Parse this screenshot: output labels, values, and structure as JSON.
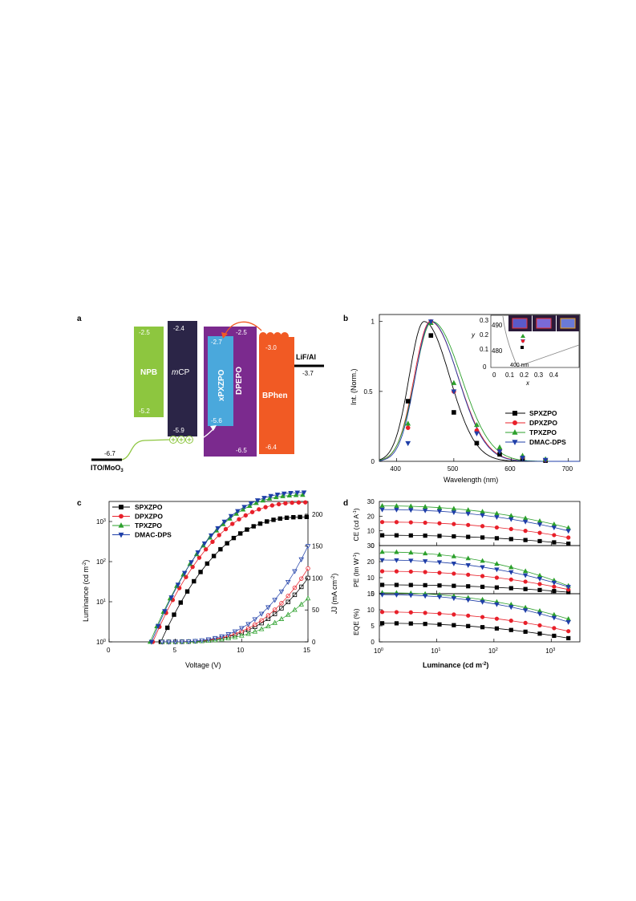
{
  "panel_labels": {
    "a": "a",
    "b": "b",
    "c": "c",
    "d": "d"
  },
  "energy_diagram": {
    "layers": [
      {
        "name": "NPB",
        "lumo": "-2.5",
        "homo": "-5.2",
        "color": "#8dc63f"
      },
      {
        "name": "mCP",
        "name_prefix": "m",
        "name_rest": "CP",
        "lumo": "-2.4",
        "homo": "-5.9",
        "color": "#2b2547"
      },
      {
        "name": "xPXZPO",
        "lumo": "-2.7",
        "homo": "-5.6",
        "color": "#4aa8dc"
      },
      {
        "name": "DPEPO",
        "lumo": "-2.5",
        "homo": "-6.5",
        "color": "#7b2a8e"
      },
      {
        "name": "BPhen",
        "lumo": "-3.0",
        "homo": "-6.4",
        "color": "#f15a24"
      }
    ],
    "anode": {
      "label": "ITO/MoO",
      "sub": "3",
      "level": "-6.7"
    },
    "cathode": {
      "label": "LiF/Al",
      "level": "-3.7"
    }
  },
  "chart_data": [
    {
      "id": "b",
      "type": "line",
      "xlabel": "Wavelength (nm)",
      "ylabel": "Int. (Norm.)",
      "xlim": [
        370,
        720
      ],
      "ylim": [
        0,
        1.05
      ],
      "xticks": [
        "400",
        "500",
        "600",
        "700"
      ],
      "yticks": [
        "0",
        "0.5",
        "1"
      ],
      "legend_position": "right",
      "series": [
        {
          "name": "SPXZPO",
          "color": "#000000",
          "marker": "square",
          "peak": 448,
          "fwhm": 72,
          "points": [
            [
              420,
              0.43
            ],
            [
              460,
              0.9
            ],
            [
              500,
              0.35
            ],
            [
              540,
              0.13
            ],
            [
              580,
              0.05
            ],
            [
              620,
              0.02
            ],
            [
              660,
              0.005
            ]
          ]
        },
        {
          "name": "DPXZPO",
          "color": "#e8202a",
          "marker": "circle",
          "peak": 459,
          "fwhm": 78,
          "points": [
            [
              420,
              0.24
            ],
            [
              460,
              1.0
            ],
            [
              500,
              0.5
            ],
            [
              540,
              0.22
            ],
            [
              580,
              0.08
            ],
            [
              620,
              0.03
            ],
            [
              660,
              0.01
            ]
          ]
        },
        {
          "name": "TPXZPO",
          "color": "#2ca02c",
          "marker": "triangle",
          "peak": 462,
          "fwhm": 82,
          "points": [
            [
              420,
              0.27
            ],
            [
              460,
              0.99
            ],
            [
              500,
              0.56
            ],
            [
              540,
              0.26
            ],
            [
              580,
              0.1
            ],
            [
              620,
              0.04
            ],
            [
              660,
              0.015
            ]
          ]
        },
        {
          "name": "DMAC-DPS",
          "color": "#1f3fa8",
          "marker": "triangle-down",
          "peak": 460,
          "fwhm": 76,
          "points": [
            [
              420,
              0.13
            ],
            [
              460,
              1.0
            ],
            [
              500,
              0.5
            ],
            [
              540,
              0.2
            ],
            [
              580,
              0.07
            ],
            [
              620,
              0.025
            ],
            [
              660,
              0.01
            ]
          ]
        }
      ],
      "inset": {
        "xlabel": "x",
        "ylabel": "y",
        "xticks": [
          "0",
          "0.1",
          "0.2",
          "0.3",
          "0.4"
        ],
        "yticks": [
          "0",
          "0.1",
          "0.2",
          "0.3"
        ],
        "annotations": [
          "490",
          "480",
          "400 nm"
        ]
      }
    },
    {
      "id": "c",
      "type": "scatter",
      "xlabel": "Voltage (V)",
      "ylabel_left": "Luminance (cd m",
      "ylabel_left_sup": "-2",
      "ylabel_left_end": ")",
      "ylabel_right": "J (mA cm",
      "ylabel_right_sup": "-2",
      "ylabel_right_end": ")",
      "xlim": [
        0,
        15
      ],
      "ylim_left_log": [
        0,
        3.5
      ],
      "ylim_right": [
        0,
        220
      ],
      "xticks": [
        "0",
        "5",
        "10",
        "15"
      ],
      "yticks_left": [
        {
          "b": "10",
          "e": "0"
        },
        {
          "b": "10",
          "e": "1"
        },
        {
          "b": "10",
          "e": "2"
        },
        {
          "b": "10",
          "e": "3"
        }
      ],
      "yticks_right": [
        "0",
        "50",
        "100",
        "150",
        "200"
      ],
      "legend_position": "top-left",
      "series": [
        {
          "name": "SPXZPO",
          "color": "#000000",
          "marker": "square",
          "lum_on": 3.9,
          "lum_max": 1300,
          "j_max": 100
        },
        {
          "name": "DPXZPO",
          "color": "#e8202a",
          "marker": "circle",
          "lum_on": 3.3,
          "lum_max": 3000,
          "j_max": 115
        },
        {
          "name": "TPXZPO",
          "color": "#2ca02c",
          "marker": "triangle",
          "lum_on": 3.1,
          "lum_max": 4600,
          "j_max": 68
        },
        {
          "name": "DMAC-DPS",
          "color": "#1f3fa8",
          "marker": "triangle-down",
          "lum_on": 3.2,
          "lum_max": 5300,
          "j_max": 150
        }
      ]
    },
    {
      "id": "d",
      "type": "scatter",
      "xlabel": "Luminance (cd m",
      "xlabel_sup": "-2",
      "xlabel_end": ")",
      "xlim_log": [
        0,
        3.5
      ],
      "xticks": [
        {
          "b": "10",
          "e": "0"
        },
        {
          "b": "10",
          "e": "1"
        },
        {
          "b": "10",
          "e": "2"
        },
        {
          "b": "10",
          "e": "3"
        }
      ],
      "subplots": [
        {
          "ylabel": "CE (cd A",
          "ylabel_sup": "-1",
          "ylabel_end": ")",
          "ylim": [
            0,
            30
          ],
          "yticks": [
            "0",
            "10",
            "20",
            "30"
          ],
          "start": {
            "SPXZPO": 7.0,
            "DPXZPO": 16.0,
            "TPXZPO": 27.0,
            "DMAC-DPS": 24.5
          },
          "end": {
            "SPXZPO": 0.5,
            "DPXZPO": 4.0,
            "TPXZPO": 10.0,
            "DMAC-DPS": 8.0
          }
        },
        {
          "ylabel": "PE (lm W",
          "ylabel_sup": "-1",
          "ylabel_end": ")",
          "ylim": [
            0,
            30
          ],
          "yticks": [
            "0",
            "10",
            "20",
            "30"
          ],
          "start": {
            "SPXZPO": 5.5,
            "DPXZPO": 14.0,
            "TPXZPO": 26.0,
            "DMAC-DPS": 21.0
          },
          "end": {
            "SPXZPO": 0.3,
            "DPXZPO": 1.0,
            "TPXZPO": 2.0,
            "DMAC-DPS": 2.0
          }
        },
        {
          "ylabel": "EQE (%)",
          "ylim": [
            0,
            15
          ],
          "yticks": [
            "0",
            "5",
            "10",
            "15"
          ],
          "start": {
            "SPXZPO": 5.8,
            "DPXZPO": 9.3,
            "TPXZPO": 15.3,
            "DMAC-DPS": 14.7
          },
          "end": {
            "SPXZPO": 0.5,
            "DPXZPO": 2.5,
            "TPXZPO": 6.0,
            "DMAC-DPS": 5.0
          }
        }
      ],
      "series_colors": {
        "SPXZPO": "#000000",
        "DPXZPO": "#e8202a",
        "TPXZPO": "#2ca02c",
        "DMAC-DPS": "#1f3fa8"
      },
      "series_markers": {
        "SPXZPO": "square",
        "DPXZPO": "circle",
        "TPXZPO": "triangle",
        "DMAC-DPS": "triangle-down"
      }
    }
  ]
}
